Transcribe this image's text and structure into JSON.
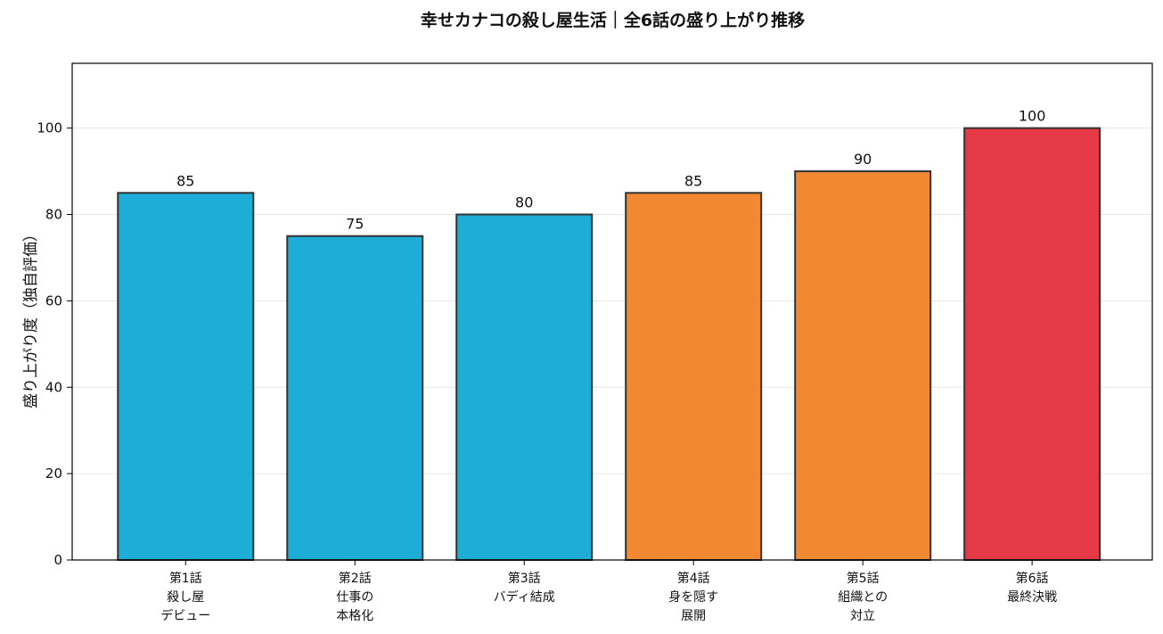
{
  "chart_data": {
    "type": "bar",
    "title": "幸せカナコの殺し屋生活｜全6話の盛り上がり推移",
    "xlabel": "",
    "ylabel": "盛り上がり度（独自評価）",
    "ylim": [
      0,
      115
    ],
    "yticks": [
      0,
      20,
      40,
      60,
      80,
      100
    ],
    "grid": true,
    "categories": [
      [
        "第1話",
        "殺し屋",
        "デビュー"
      ],
      [
        "第2話",
        "仕事の",
        "本格化"
      ],
      [
        "第3話",
        "バディ結成"
      ],
      [
        "第4話",
        "身を隠す",
        "展開"
      ],
      [
        "第5話",
        "組織との",
        "対立"
      ],
      [
        "第6話",
        "最終決戦"
      ]
    ],
    "values": [
      85,
      75,
      80,
      85,
      90,
      100
    ],
    "data_labels": [
      "85",
      "75",
      "80",
      "85",
      "90",
      "100"
    ],
    "bar_colors": [
      "#1eadd6",
      "#1eadd6",
      "#1eadd6",
      "#f28832",
      "#f28832",
      "#e63946"
    ]
  },
  "colors": {
    "bar_edge": "#333333",
    "grid": "#e6e6e6",
    "axis": "#000000"
  }
}
